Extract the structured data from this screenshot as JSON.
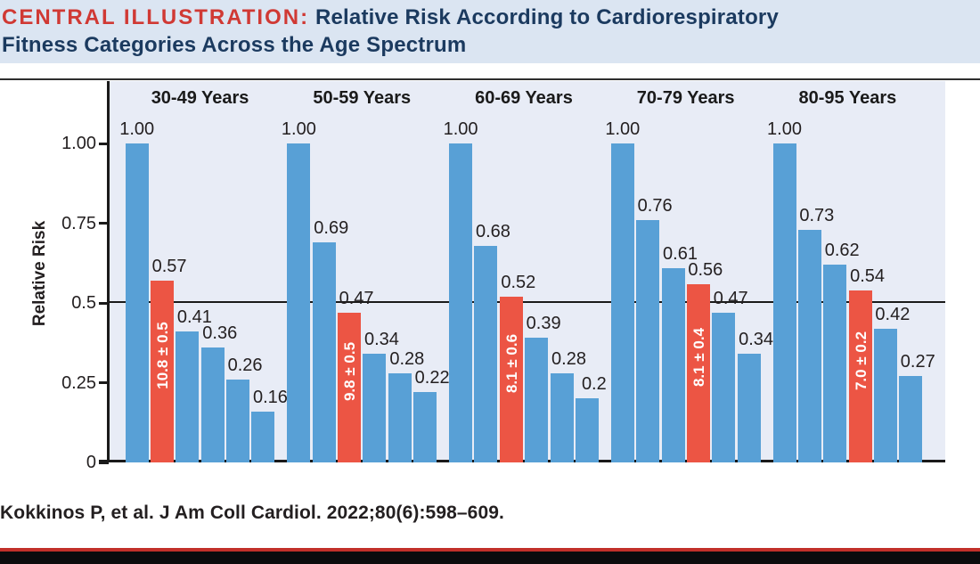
{
  "header": {
    "label": "CENTRAL ILLUSTRATION:",
    "title_line1": "Relative Risk According to Cardiorespiratory",
    "title_line2": "Fitness Categories Across the Age Spectrum"
  },
  "footer": {
    "citation": "Kokkinos P, et al. J Am Coll Cardiol. 2022;80(6):598–609."
  },
  "colors": {
    "bar_blue": "#58a0d6",
    "bar_red": "#ec5544",
    "title_red": "#d03934",
    "title_navy": "#1b3a5f",
    "panel_bg": "#e8ecf6",
    "band_bg": "#dbe5f2",
    "bottom_rule_red": "#c2302a",
    "bottom_bar_black": "#0b0b0d"
  },
  "chart_data": {
    "type": "bar",
    "title": "Relative Risk According to Cardiorespiratory Fitness Categories Across the Age Spectrum",
    "xlabel": "",
    "ylabel": "Relative Risk",
    "ylim": [
      0,
      1.12
    ],
    "grid": false,
    "legend": "none",
    "reference_line_y": 0.5,
    "y_ticks": [
      {
        "v": 1.0,
        "label": "1.00"
      },
      {
        "v": 0.75,
        "label": "0.75"
      },
      {
        "v": 0.5,
        "label": "0.5"
      },
      {
        "v": 0.25,
        "label": "0.25"
      },
      {
        "v": 0,
        "label": "0"
      }
    ],
    "groups": [
      {
        "label": "30-49 Years",
        "bars": [
          {
            "value": 1.0,
            "label": "1.00",
            "color": "blue"
          },
          {
            "value": 0.57,
            "label": "0.57",
            "color": "red",
            "inner_label": "10.8 ± 0.5"
          },
          {
            "value": 0.41,
            "label": "0.41",
            "color": "blue"
          },
          {
            "value": 0.36,
            "label": "0.36",
            "color": "blue"
          },
          {
            "value": 0.26,
            "label": "0.26",
            "color": "blue"
          },
          {
            "value": 0.16,
            "label": "0.16",
            "color": "blue"
          }
        ]
      },
      {
        "label": "50-59 Years",
        "bars": [
          {
            "value": 1.0,
            "label": "1.00",
            "color": "blue"
          },
          {
            "value": 0.69,
            "label": "0.69",
            "color": "blue"
          },
          {
            "value": 0.47,
            "label": "0.47",
            "color": "red",
            "inner_label": "9.8 ± 0.5"
          },
          {
            "value": 0.34,
            "label": "0.34",
            "color": "blue"
          },
          {
            "value": 0.28,
            "label": "0.28",
            "color": "blue"
          },
          {
            "value": 0.22,
            "label": "0.22",
            "color": "blue"
          }
        ]
      },
      {
        "label": "60-69 Years",
        "bars": [
          {
            "value": 1.0,
            "label": "1.00",
            "color": "blue"
          },
          {
            "value": 0.68,
            "label": "0.68",
            "color": "blue"
          },
          {
            "value": 0.52,
            "label": "0.52",
            "color": "red",
            "inner_label": "8.1 ± 0.6"
          },
          {
            "value": 0.39,
            "label": "0.39",
            "color": "blue"
          },
          {
            "value": 0.28,
            "label": "0.28",
            "color": "blue"
          },
          {
            "value": 0.2,
            "label": "0.2",
            "color": "blue"
          }
        ]
      },
      {
        "label": "70-79 Years",
        "bars": [
          {
            "value": 1.0,
            "label": "1.00",
            "color": "blue"
          },
          {
            "value": 0.76,
            "label": "0.76",
            "color": "blue"
          },
          {
            "value": 0.61,
            "label": "0.61",
            "color": "blue"
          },
          {
            "value": 0.56,
            "label": "0.56",
            "color": "red",
            "inner_label": "8.1 ± 0.4"
          },
          {
            "value": 0.47,
            "label": "0.47",
            "color": "blue"
          },
          {
            "value": 0.34,
            "label": "0.34",
            "color": "blue"
          }
        ]
      },
      {
        "label": "80-95 Years",
        "bars": [
          {
            "value": 1.0,
            "label": "1.00",
            "color": "blue"
          },
          {
            "value": 0.73,
            "label": "0.73",
            "color": "blue"
          },
          {
            "value": 0.62,
            "label": "0.62",
            "color": "blue"
          },
          {
            "value": 0.54,
            "label": "0.54",
            "color": "red",
            "inner_label": "7.0 ± 0.2"
          },
          {
            "value": 0.42,
            "label": "0.42",
            "color": "blue"
          },
          {
            "value": 0.27,
            "label": "0.27",
            "color": "blue"
          }
        ]
      }
    ]
  }
}
